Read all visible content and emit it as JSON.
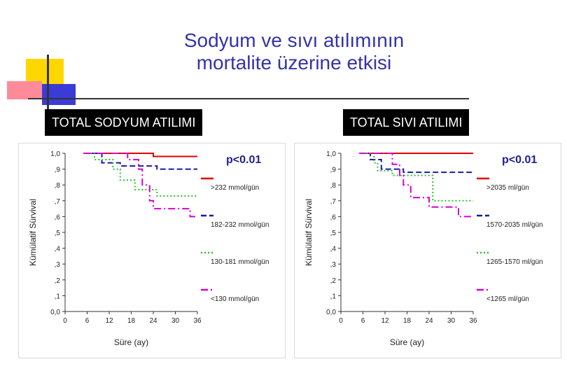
{
  "title_line1": "Sodyum ve sıvı atılımının",
  "title_line2": "mortalite üzerine etkisi",
  "colors": {
    "title": "#3333aa",
    "deco_yellow": "#ffd700",
    "deco_pink": "#ff8a9a",
    "deco_blue": "#3b3bd6",
    "pvalue": "#1f1f8f"
  },
  "chart_data": [
    {
      "type": "line",
      "section_label": "TOTAL SODYUM ATILIMI",
      "title": "",
      "xlabel": "Süre (ay)",
      "ylabel": "Kümülatif Sürvival",
      "x_ticks": [
        "0",
        "6",
        "12",
        "18",
        "24",
        "30",
        "36"
      ],
      "y_ticks": [
        "0,0",
        ",1",
        ",2",
        ",3",
        ",4",
        ",5",
        ",6",
        ",7",
        ",8",
        ",9",
        "1,0"
      ],
      "xlim": [
        0,
        36
      ],
      "ylim": [
        0,
        1
      ],
      "annotation": "p<0.01",
      "series": [
        {
          "name": ">232 mmol/gün",
          "color": "#e00000",
          "dash": "solid",
          "x": [
            5,
            24,
            24,
            36
          ],
          "y": [
            1.0,
            1.0,
            0.98,
            0.98
          ]
        },
        {
          "name": "182-232 mmol/gün",
          "color": "#1a1aa6",
          "dash": "dashed",
          "x": [
            5,
            10,
            10,
            15,
            15,
            25,
            25,
            36
          ],
          "y": [
            1.0,
            1.0,
            0.94,
            0.94,
            0.92,
            0.92,
            0.9,
            0.9
          ]
        },
        {
          "name": "130-181 mmol/gün",
          "color": "#2dc02d",
          "dash": "dotted",
          "x": [
            5,
            8,
            8,
            13,
            13,
            15,
            15,
            19,
            19,
            25,
            25,
            36
          ],
          "y": [
            1.0,
            1.0,
            0.96,
            0.96,
            0.9,
            0.9,
            0.83,
            0.83,
            0.77,
            0.77,
            0.73,
            0.73
          ]
        },
        {
          "name": "<130 mmol/gün",
          "color": "#d400d4",
          "dash": "dashdot",
          "x": [
            5,
            17,
            17,
            20,
            20,
            21,
            21,
            23,
            23,
            24,
            24,
            34,
            34,
            36
          ],
          "y": [
            1.0,
            1.0,
            0.96,
            0.96,
            0.9,
            0.9,
            0.8,
            0.8,
            0.7,
            0.7,
            0.65,
            0.65,
            0.6,
            0.6
          ]
        }
      ]
    },
    {
      "type": "line",
      "section_label": "TOTAL SIVI ATILIMI",
      "title": "",
      "xlabel": "Süre (ay)",
      "ylabel": "Kümülatif Sürvival",
      "x_ticks": [
        "0",
        "6",
        "12",
        "18",
        "24",
        "30",
        "36"
      ],
      "y_ticks": [
        "0,0",
        ",1",
        ",2",
        ",3",
        ",4",
        ",5",
        ",6",
        ",7",
        ",8",
        ",9",
        "1,0"
      ],
      "xlim": [
        0,
        36
      ],
      "ylim": [
        0,
        1
      ],
      "annotation": "p<0.01",
      "series": [
        {
          "name": ">2035 ml/gün",
          "color": "#e00000",
          "dash": "solid",
          "x": [
            5,
            36
          ],
          "y": [
            1.0,
            1.0
          ]
        },
        {
          "name": "1570-2035 ml/gün",
          "color": "#1a1aa6",
          "dash": "dashed",
          "x": [
            5,
            8,
            8,
            11,
            11,
            17,
            17,
            36
          ],
          "y": [
            1.0,
            1.0,
            0.96,
            0.96,
            0.9,
            0.9,
            0.88,
            0.88
          ]
        },
        {
          "name": "1265-1570 ml/gün",
          "color": "#2dc02d",
          "dash": "dotted",
          "x": [
            5,
            9,
            9,
            10,
            10,
            14,
            14,
            25,
            25,
            36
          ],
          "y": [
            1.0,
            1.0,
            0.94,
            0.94,
            0.89,
            0.89,
            0.86,
            0.86,
            0.7,
            0.7
          ]
        },
        {
          "name": "<1265 ml/gün",
          "color": "#d400d4",
          "dash": "dashdot",
          "x": [
            5,
            14,
            14,
            16,
            16,
            17,
            17,
            19,
            19,
            24,
            24,
            32,
            32,
            36
          ],
          "y": [
            1.0,
            1.0,
            0.93,
            0.93,
            0.86,
            0.86,
            0.8,
            0.8,
            0.72,
            0.72,
            0.66,
            0.66,
            0.6,
            0.6
          ]
        }
      ]
    }
  ]
}
